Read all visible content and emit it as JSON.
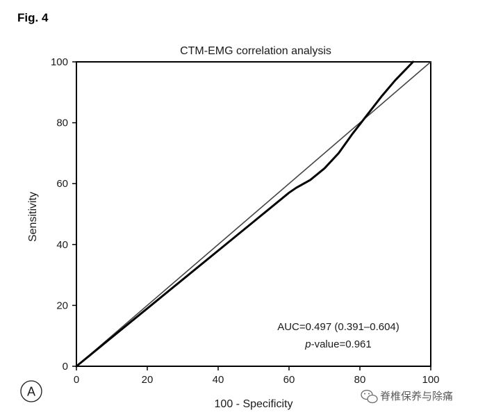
{
  "figure_label": "Fig. 4",
  "panel_label": "A",
  "watermark": {
    "text": "脊椎保养与除痛",
    "icon": "wechat-icon"
  },
  "chart_data": {
    "type": "line",
    "title": "CTM-EMG correlation analysis",
    "xlabel": "100 - Specificity",
    "ylabel": "Sensitivity",
    "xlim": [
      0,
      100
    ],
    "ylim": [
      0,
      100
    ],
    "xticks": [
      0,
      20,
      40,
      60,
      80,
      100
    ],
    "yticks": [
      0,
      20,
      40,
      60,
      80,
      100
    ],
    "grid": false,
    "series": [
      {
        "name": "ROC curve",
        "color": "#000000",
        "x": [
          0,
          10,
          20,
          30,
          40,
          50,
          60,
          62,
          66,
          70,
          74,
          78,
          82,
          86,
          90,
          95
        ],
        "y": [
          0,
          9.5,
          19,
          28.5,
          38,
          47.5,
          57,
          58.6,
          61.2,
          65,
          70,
          76.5,
          82.5,
          88.5,
          94,
          100
        ]
      },
      {
        "name": "Reference line",
        "color": "#444444",
        "x": [
          0,
          100
        ],
        "y": [
          0,
          100
        ]
      }
    ],
    "annotation": {
      "auc_text": "AUC=0.497 (0.391–0.604)",
      "p_label": "p",
      "p_rest": "-value=0.961"
    }
  }
}
